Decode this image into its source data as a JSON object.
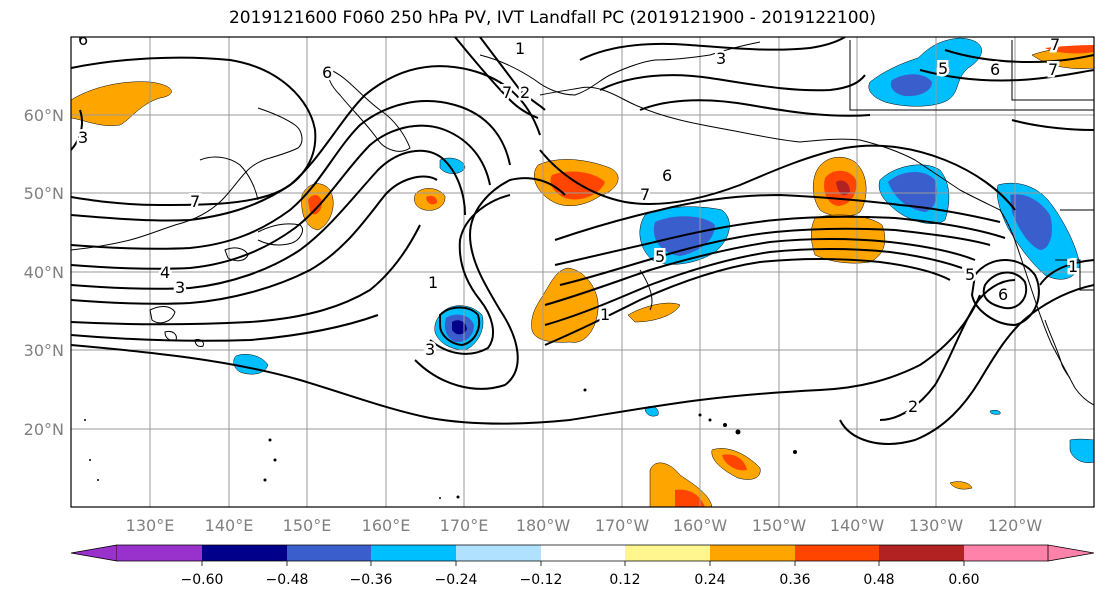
{
  "title": "2019121600 F060 250 hPa PV, IVT Landfall PC (2019121900 - 2019122100)",
  "map": {
    "lat_labels": [
      "60°N",
      "50°N",
      "40°N",
      "30°N",
      "20°N"
    ],
    "lon_labels": [
      "130°E",
      "140°E",
      "150°E",
      "160°E",
      "170°E",
      "180°W",
      "170°W",
      "160°W",
      "150°W",
      "140°W",
      "130°W",
      "120°W"
    ],
    "contour_labels": [
      "6",
      "1",
      "3",
      "7",
      "2",
      "7",
      "3",
      "5",
      "6",
      "7",
      "6",
      "7",
      "7",
      "4",
      "3",
      "1",
      "5",
      "1",
      "5",
      "6",
      "1",
      "2",
      "3",
      "6"
    ]
  },
  "colorbar": {
    "tick_labels": [
      "−0.60",
      "−0.48",
      "−0.36",
      "−0.24",
      "−0.12",
      "0.12",
      "0.24",
      "0.36",
      "0.48",
      "0.60"
    ],
    "colors": [
      "#9932cc",
      "#00008b",
      "#3a5fcd",
      "#00bfff",
      "#b0e2ff",
      "#ffffff",
      "#fff68f",
      "#ffa500",
      "#ff4500",
      "#b22222",
      "#ff82ab"
    ]
  }
}
